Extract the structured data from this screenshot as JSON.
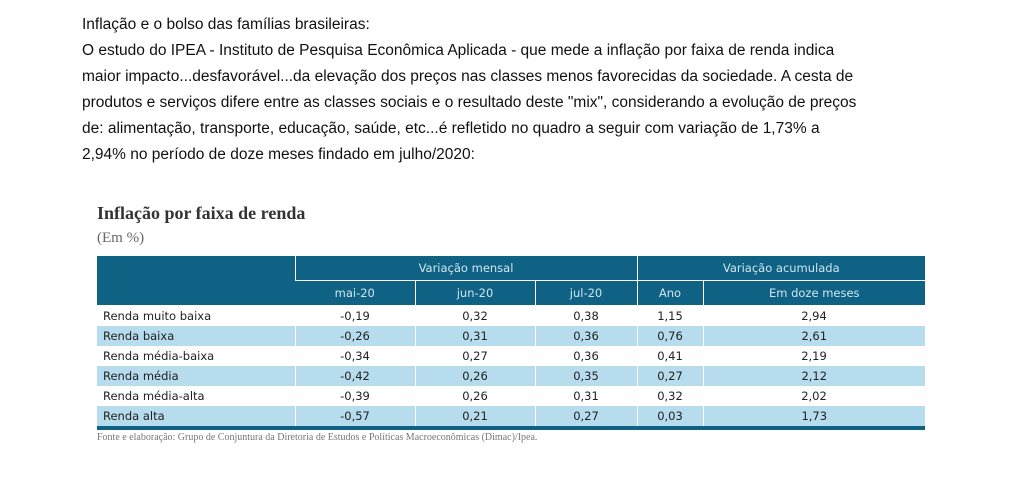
{
  "intro": {
    "lines": [
      "Inflação e o bolso das famílias brasileiras:",
      " O estudo do IPEA - Instituto de Pesquisa Econômica Aplicada - que mede a inflação por faixa de renda indica",
      "maior impacto...desfavorável...da elevação dos preços nas classes menos favorecidas da sociedade. A cesta de",
      "produtos e serviços difere entre as classes sociais e o resultado deste \"mix\", considerando a evolução de preços",
      "de: alimentação, transporte, educação, saúde, etc...é refletido no quadro a seguir com variação de 1,73% a",
      "2,94% no período de doze meses findado em julho/2020:"
    ]
  },
  "table": {
    "title": "Inflação por faixa de renda",
    "subtitle": "(Em %)",
    "group_headers": [
      "Variação mensal",
      "Variação acumulada"
    ],
    "columns": [
      "mai-20",
      "jun-20",
      "jul-20",
      "Ano",
      "Em doze meses"
    ],
    "rows": [
      [
        "Renda muito baixa",
        "-0,19",
        "0,32",
        "0,38",
        "1,15",
        "2,94"
      ],
      [
        "Renda baixa",
        "-0,26",
        "0,31",
        "0,36",
        "0,76",
        "2,61"
      ],
      [
        "Renda média-baixa",
        "-0,34",
        "0,27",
        "0,36",
        "0,41",
        "2,19"
      ],
      [
        "Renda média",
        "-0,42",
        "0,26",
        "0,35",
        "0,27",
        "2,12"
      ],
      [
        "Renda média-alta",
        "-0,39",
        "0,26",
        "0,31",
        "0,32",
        "2,02"
      ],
      [
        "Renda alta",
        "-0,57",
        "0,21",
        "0,27",
        "0,03",
        "1,73"
      ]
    ],
    "source": "Fonte e elaboração: Grupo de Conjuntura da Diretoria de Estudos e Políticas Macroeconômicas (Dimac)/Ipea."
  }
}
